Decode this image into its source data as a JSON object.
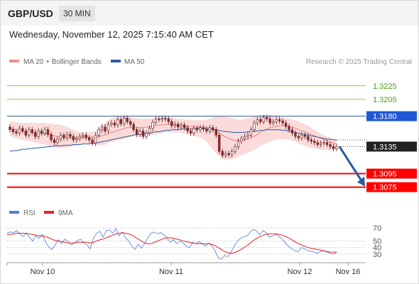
{
  "header": {
    "symbol": "GBP/USD",
    "timeframe": "30 MIN"
  },
  "datetime": "Wednesday, November 12, 2025 7:15:40 AM CET",
  "legend": {
    "ma20_label": "MA 20 + Bollinger Bands",
    "ma50_label": "MA 50",
    "copyright": "Research © 2025 Trading Central",
    "rsi_label": "RSI",
    "rsi_ma_label": "9MA"
  },
  "colors": {
    "candle_up": "#ffffff",
    "candle_down": "#a0242a",
    "bollinger_fill": "#fbd6d6",
    "ma20": "#e88080",
    "ma50": "#2c5aa0",
    "resistance": "#2c5aa0",
    "support": "#ff0000",
    "target_up": "#8cc63f",
    "rsi": "#4a7fd4",
    "rsi_ma": "#e52121",
    "arrow": "#2c5aa0"
  },
  "chart_data": [
    {
      "type": "candlestick",
      "title": "GBP/USD",
      "x_labels": [
        "Nov 10",
        "Nov 11",
        "Nov 12",
        "Nov 16"
      ],
      "ylim": [
        1.3063,
        1.325
      ],
      "levels": [
        {
          "value": 1.3225,
          "label": "1.3225",
          "kind": "target"
        },
        {
          "value": 1.3205,
          "label": "1.3205",
          "kind": "target"
        },
        {
          "value": 1.318,
          "label": "1.3180",
          "kind": "resistance"
        },
        {
          "value": 1.3135,
          "label": "1.3135",
          "kind": "last"
        },
        {
          "value": 1.3095,
          "label": "1.3095",
          "kind": "support"
        },
        {
          "value": 1.3075,
          "label": "1.3075",
          "kind": "support"
        }
      ],
      "last_price": 1.3135,
      "arrow": {
        "from": 1.3135,
        "to": 1.3075,
        "direction": "down"
      },
      "closes": [
        1.316,
        1.3157,
        1.3155,
        1.3162,
        1.3158,
        1.3152,
        1.316,
        1.3156,
        1.315,
        1.3158,
        1.3155,
        1.316,
        1.3153,
        1.3145,
        1.3141,
        1.3146,
        1.3152,
        1.3148,
        1.3153,
        1.315,
        1.3145,
        1.3147,
        1.315,
        1.3152,
        1.3148,
        1.3145,
        1.314,
        1.3152,
        1.316,
        1.3164,
        1.3158,
        1.3168,
        1.317,
        1.3167,
        1.3175,
        1.3169,
        1.3177,
        1.3172,
        1.3168,
        1.316,
        1.3153,
        1.3158,
        1.315,
        1.3155,
        1.3162,
        1.3171,
        1.3176,
        1.3175,
        1.3177,
        1.3176,
        1.3172,
        1.3166,
        1.3168,
        1.3164,
        1.3167,
        1.3163,
        1.3158,
        1.3155,
        1.3162,
        1.316,
        1.3163,
        1.3161,
        1.3158,
        1.3163,
        1.316,
        1.3152,
        1.3128,
        1.3122,
        1.3125,
        1.3123,
        1.3128,
        1.3135,
        1.3143,
        1.3147,
        1.315,
        1.3152,
        1.316,
        1.317,
        1.3175,
        1.3172,
        1.3178,
        1.3176,
        1.317,
        1.3172,
        1.3175,
        1.3173,
        1.317,
        1.3165,
        1.316,
        1.3155,
        1.315,
        1.3148,
        1.3152,
        1.315,
        1.3145,
        1.3143,
        1.3141,
        1.3138,
        1.314,
        1.3141,
        1.3138,
        1.3135,
        1.3132,
        1.3135
      ],
      "ma20": [
        1.3162,
        1.3161,
        1.316,
        1.3159,
        1.3158,
        1.3157,
        1.3157,
        1.3156,
        1.3155,
        1.3155,
        1.3154,
        1.3154,
        1.3153,
        1.3152,
        1.3151,
        1.315,
        1.315,
        1.3149,
        1.3149,
        1.3148,
        1.3148,
        1.3148,
        1.3148,
        1.3149,
        1.3149,
        1.3149,
        1.3149,
        1.3149,
        1.315,
        1.3151,
        1.3152,
        1.3154,
        1.3156,
        1.3157,
        1.3159,
        1.316,
        1.3162,
        1.3163,
        1.3163,
        1.3163,
        1.3163,
        1.3163,
        1.3163,
        1.3164,
        1.3164,
        1.3165,
        1.3166,
        1.3167,
        1.3167,
        1.3168,
        1.3168,
        1.3168,
        1.3168,
        1.3167,
        1.3167,
        1.3166,
        1.3165,
        1.3165,
        1.3164,
        1.3164,
        1.3164,
        1.3163,
        1.3163,
        1.3162,
        1.3161,
        1.3158,
        1.3155,
        1.3152,
        1.3149,
        1.3147,
        1.3145,
        1.3144,
        1.3144,
        1.3144,
        1.3145,
        1.3146,
        1.3148,
        1.315,
        1.3153,
        1.3156,
        1.3159,
        1.3161,
        1.3163,
        1.3164,
        1.3165,
        1.3166,
        1.3166,
        1.3166,
        1.3165,
        1.3164,
        1.3162,
        1.316,
        1.3158,
        1.3157,
        1.3155,
        1.3153,
        1.3151,
        1.3149,
        1.3147,
        1.3146,
        1.3144,
        1.3142,
        1.314,
        1.3139
      ],
      "bb_upper": [
        1.3172,
        1.3172,
        1.3171,
        1.317,
        1.317,
        1.317,
        1.317,
        1.317,
        1.317,
        1.317,
        1.317,
        1.317,
        1.3169,
        1.3169,
        1.3168,
        1.3168,
        1.3167,
        1.3166,
        1.3164,
        1.3162,
        1.316,
        1.3158,
        1.3157,
        1.3156,
        1.3156,
        1.3156,
        1.3157,
        1.3158,
        1.3162,
        1.3166,
        1.317,
        1.3174,
        1.3177,
        1.3178,
        1.318,
        1.318,
        1.318,
        1.318,
        1.3179,
        1.3178,
        1.3177,
        1.3176,
        1.3176,
        1.3176,
        1.3176,
        1.3177,
        1.3178,
        1.3178,
        1.3179,
        1.3179,
        1.3179,
        1.3178,
        1.3177,
        1.3176,
        1.3176,
        1.3175,
        1.3175,
        1.3174,
        1.3174,
        1.3174,
        1.3174,
        1.3174,
        1.3175,
        1.3176,
        1.3178,
        1.318,
        1.318,
        1.318,
        1.3179,
        1.3178,
        1.3177,
        1.3176,
        1.3175,
        1.3175,
        1.3176,
        1.3177,
        1.3178,
        1.318,
        1.3181,
        1.3182,
        1.3182,
        1.3182,
        1.3182,
        1.3181,
        1.318,
        1.3179,
        1.3178,
        1.3177,
        1.3176,
        1.3175,
        1.3174,
        1.3172,
        1.317,
        1.3168,
        1.3166,
        1.3163,
        1.316,
        1.3157,
        1.3154,
        1.3152,
        1.315,
        1.3148,
        1.3146,
        1.3145
      ],
      "bb_lower": [
        1.315,
        1.3149,
        1.3147,
        1.3146,
        1.3145,
        1.3144,
        1.3143,
        1.3142,
        1.3141,
        1.314,
        1.3139,
        1.3138,
        1.3136,
        1.3135,
        1.3134,
        1.3133,
        1.3133,
        1.3133,
        1.3134,
        1.3135,
        1.3136,
        1.3137,
        1.3138,
        1.3139,
        1.3139,
        1.3139,
        1.3139,
        1.3138,
        1.3137,
        1.3137,
        1.3138,
        1.314,
        1.3142,
        1.3143,
        1.3144,
        1.3145,
        1.3147,
        1.3148,
        1.3149,
        1.315,
        1.315,
        1.315,
        1.3151,
        1.3151,
        1.3152,
        1.3152,
        1.3153,
        1.3154,
        1.3155,
        1.3156,
        1.3156,
        1.3156,
        1.3156,
        1.3156,
        1.3155,
        1.3154,
        1.3153,
        1.3152,
        1.3151,
        1.315,
        1.3148,
        1.3146,
        1.3142,
        1.3136,
        1.313,
        1.3125,
        1.3121,
        1.3118,
        1.3116,
        1.3116,
        1.3117,
        1.3118,
        1.312,
        1.3122,
        1.3124,
        1.3126,
        1.3128,
        1.313,
        1.3133,
        1.3136,
        1.3138,
        1.314,
        1.3142,
        1.3144,
        1.3145,
        1.3146,
        1.3146,
        1.3146,
        1.3145,
        1.3144,
        1.3142,
        1.314,
        1.3138,
        1.3136,
        1.3134,
        1.3133,
        1.3132,
        1.3131,
        1.313,
        1.313,
        1.313,
        1.313,
        1.313,
        1.313
      ],
      "ma50": [
        1.3128,
        1.3129,
        1.3129,
        1.313,
        1.3131,
        1.3131,
        1.3132,
        1.3132,
        1.3133,
        1.3133,
        1.3134,
        1.3134,
        1.3135,
        1.3135,
        1.3136,
        1.3136,
        1.3136,
        1.3137,
        1.3137,
        1.3137,
        1.3138,
        1.3138,
        1.3138,
        1.3139,
        1.3139,
        1.3139,
        1.314,
        1.314,
        1.3141,
        1.3142,
        1.3143,
        1.3144,
        1.3145,
        1.3146,
        1.3147,
        1.3148,
        1.3149,
        1.315,
        1.3151,
        1.3152,
        1.3153,
        1.3153,
        1.3154,
        1.3155,
        1.3155,
        1.3156,
        1.3157,
        1.3157,
        1.3158,
        1.3159,
        1.3159,
        1.316,
        1.316,
        1.316,
        1.3161,
        1.3161,
        1.3161,
        1.3161,
        1.3161,
        1.3162,
        1.3162,
        1.3162,
        1.3161,
        1.3161,
        1.316,
        1.316,
        1.3159,
        1.3158,
        1.3157,
        1.3157,
        1.3156,
        1.3156,
        1.3156,
        1.3156,
        1.3156,
        1.3157,
        1.3157,
        1.3158,
        1.3158,
        1.3159,
        1.3159,
        1.316,
        1.316,
        1.316,
        1.316,
        1.316,
        1.3159,
        1.3159,
        1.3158,
        1.3157,
        1.3156,
        1.3155,
        1.3154,
        1.3153,
        1.3152,
        1.3151,
        1.315,
        1.3149,
        1.3148,
        1.3147,
        1.3146,
        1.3146,
        1.3145,
        1.3145
      ]
    },
    {
      "type": "line",
      "title": "RSI",
      "ylim": [
        20,
        80
      ],
      "yticks": [
        70,
        50,
        40,
        30
      ],
      "series": [
        {
          "name": "RSI",
          "values": [
            62,
            64,
            63,
            66,
            61,
            57,
            62,
            56,
            50,
            58,
            54,
            60,
            49,
            41,
            37,
            44,
            52,
            46,
            53,
            50,
            44,
            47,
            51,
            53,
            47,
            44,
            38,
            55,
            62,
            65,
            56,
            66,
            67,
            62,
            69,
            58,
            64,
            55,
            50,
            42,
            37,
            45,
            39,
            46,
            55,
            62,
            64,
            61,
            63,
            60,
            55,
            48,
            52,
            46,
            50,
            47,
            42,
            40,
            48,
            46,
            49,
            46,
            42,
            47,
            43,
            35,
            24,
            22,
            28,
            26,
            33,
            42,
            50,
            54,
            57,
            58,
            64,
            68,
            65,
            60,
            66,
            63,
            56,
            58,
            60,
            57,
            53,
            47,
            42,
            38,
            35,
            34,
            40,
            38,
            35,
            34,
            33,
            31,
            34,
            35,
            33,
            31,
            30,
            32
          ]
        },
        {
          "name": "9MA",
          "values": [
            60,
            60,
            61,
            62,
            62,
            62,
            62,
            61,
            60,
            59,
            58,
            58,
            57,
            55,
            53,
            51,
            50,
            49,
            48,
            47,
            47,
            47,
            48,
            48,
            48,
            48,
            47,
            48,
            50,
            52,
            53,
            55,
            57,
            59,
            61,
            62,
            63,
            62,
            61,
            59,
            56,
            53,
            50,
            47,
            46,
            46,
            48,
            50,
            52,
            54,
            55,
            55,
            54,
            53,
            52,
            50,
            49,
            48,
            47,
            46,
            46,
            46,
            46,
            46,
            45,
            43,
            40,
            37,
            34,
            32,
            31,
            32,
            34,
            37,
            40,
            43,
            47,
            51,
            54,
            57,
            59,
            60,
            61,
            61,
            61,
            60,
            59,
            57,
            55,
            52,
            49,
            46,
            44,
            42,
            40,
            39,
            38,
            37,
            36,
            35,
            34,
            33,
            33,
            33
          ]
        }
      ]
    }
  ]
}
